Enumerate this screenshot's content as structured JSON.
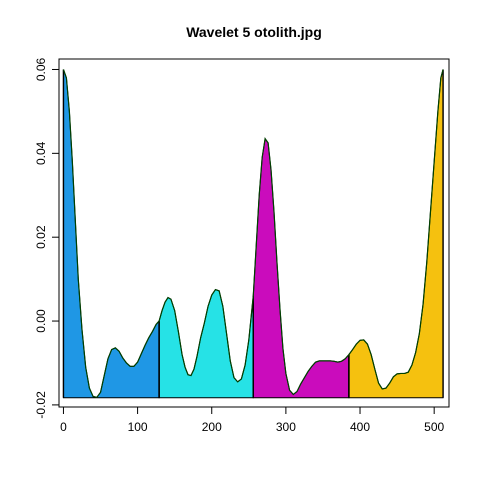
{
  "chart_data": {
    "type": "area",
    "title": "Wavelet 5 otolith.jpg",
    "xlabel": "",
    "ylabel": "",
    "xlim": [
      -6,
      520
    ],
    "ylim": [
      -0.0205,
      0.0625
    ],
    "baseline": -0.0183,
    "x_ticks": [
      0,
      100,
      200,
      300,
      400,
      500
    ],
    "x_tick_labels": [
      "0",
      "100",
      "200",
      "300",
      "400",
      "500"
    ],
    "y_ticks": [
      -0.02,
      0.0,
      0.02,
      0.04,
      0.06
    ],
    "y_tick_labels": [
      "-0.02",
      "0.00",
      "0.02",
      "0.04",
      "0.06"
    ],
    "grid": false,
    "line_color": "#004000",
    "segments": [
      {
        "x_start": 0,
        "x_end": 129,
        "color": "#1f97e5"
      },
      {
        "x_start": 129,
        "x_end": 256,
        "color": "#26e2e6"
      },
      {
        "x_start": 256,
        "x_end": 385,
        "color": "#ca0cbc"
      },
      {
        "x_start": 385,
        "x_end": 512,
        "color": "#f5c10f"
      }
    ],
    "points": [
      [
        0,
        0.06
      ],
      [
        4,
        0.058
      ],
      [
        8,
        0.05
      ],
      [
        12,
        0.038
      ],
      [
        16,
        0.024
      ],
      [
        20,
        0.01
      ],
      [
        25,
        -0.002
      ],
      [
        30,
        -0.011
      ],
      [
        35,
        -0.016
      ],
      [
        40,
        -0.018
      ],
      [
        45,
        -0.0182
      ],
      [
        50,
        -0.017
      ],
      [
        55,
        -0.013
      ],
      [
        60,
        -0.009
      ],
      [
        65,
        -0.0068
      ],
      [
        70,
        -0.0064
      ],
      [
        75,
        -0.0072
      ],
      [
        80,
        -0.0088
      ],
      [
        85,
        -0.01
      ],
      [
        90,
        -0.0108
      ],
      [
        95,
        -0.0108
      ],
      [
        100,
        -0.0098
      ],
      [
        105,
        -0.0078
      ],
      [
        110,
        -0.0058
      ],
      [
        115,
        -0.004
      ],
      [
        120,
        -0.0025
      ],
      [
        125,
        -0.0008
      ],
      [
        129,
        0.0
      ],
      [
        133,
        0.0025
      ],
      [
        137,
        0.0045
      ],
      [
        141,
        0.0056
      ],
      [
        145,
        0.0052
      ],
      [
        150,
        0.0025
      ],
      [
        155,
        -0.0025
      ],
      [
        160,
        -0.008
      ],
      [
        164,
        -0.011
      ],
      [
        168,
        -0.0128
      ],
      [
        172,
        -0.013
      ],
      [
        176,
        -0.0115
      ],
      [
        180,
        -0.0085
      ],
      [
        185,
        -0.004
      ],
      [
        190,
        -0.0005
      ],
      [
        195,
        0.0035
      ],
      [
        200,
        0.0062
      ],
      [
        205,
        0.0075
      ],
      [
        210,
        0.0072
      ],
      [
        215,
        0.0035
      ],
      [
        220,
        -0.003
      ],
      [
        225,
        -0.0095
      ],
      [
        230,
        -0.0135
      ],
      [
        235,
        -0.0145
      ],
      [
        240,
        -0.0138
      ],
      [
        245,
        -0.0105
      ],
      [
        250,
        -0.0045
      ],
      [
        256,
        0.006
      ],
      [
        260,
        0.018
      ],
      [
        264,
        0.03
      ],
      [
        268,
        0.039
      ],
      [
        272,
        0.0435
      ],
      [
        276,
        0.0425
      ],
      [
        280,
        0.036
      ],
      [
        284,
        0.026
      ],
      [
        288,
        0.014
      ],
      [
        292,
        0.003
      ],
      [
        296,
        -0.0065
      ],
      [
        300,
        -0.0125
      ],
      [
        305,
        -0.0165
      ],
      [
        310,
        -0.0175
      ],
      [
        315,
        -0.0168
      ],
      [
        320,
        -0.015
      ],
      [
        325,
        -0.0135
      ],
      [
        330,
        -0.012
      ],
      [
        335,
        -0.0108
      ],
      [
        340,
        -0.0098
      ],
      [
        345,
        -0.0095
      ],
      [
        350,
        -0.0095
      ],
      [
        355,
        -0.0095
      ],
      [
        360,
        -0.0095
      ],
      [
        365,
        -0.0096
      ],
      [
        370,
        -0.0098
      ],
      [
        375,
        -0.0096
      ],
      [
        380,
        -0.009
      ],
      [
        385,
        -0.008
      ],
      [
        390,
        -0.0068
      ],
      [
        395,
        -0.0055
      ],
      [
        400,
        -0.0046
      ],
      [
        405,
        -0.0045
      ],
      [
        410,
        -0.0055
      ],
      [
        415,
        -0.008
      ],
      [
        420,
        -0.0115
      ],
      [
        425,
        -0.0148
      ],
      [
        430,
        -0.0162
      ],
      [
        435,
        -0.016
      ],
      [
        440,
        -0.0148
      ],
      [
        445,
        -0.0133
      ],
      [
        450,
        -0.0126
      ],
      [
        455,
        -0.0125
      ],
      [
        460,
        -0.0125
      ],
      [
        465,
        -0.0122
      ],
      [
        470,
        -0.0105
      ],
      [
        475,
        -0.0075
      ],
      [
        480,
        -0.003
      ],
      [
        485,
        0.004
      ],
      [
        490,
        0.014
      ],
      [
        495,
        0.026
      ],
      [
        500,
        0.038
      ],
      [
        505,
        0.05
      ],
      [
        509,
        0.058
      ],
      [
        512,
        0.06
      ]
    ]
  }
}
